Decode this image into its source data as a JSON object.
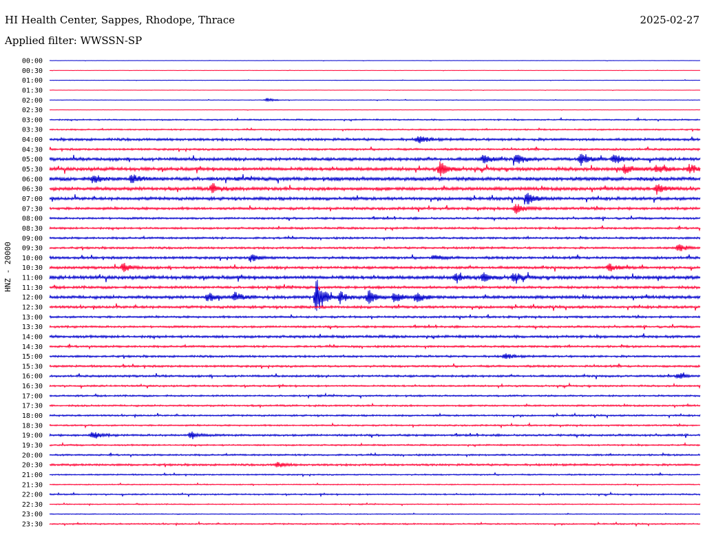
{
  "header": {
    "station": "HI Health Center, Sappes, Rhodope, Thrace",
    "filter": "Applied filter: WWSSN-SP",
    "date": "2025-02-27"
  },
  "chart_data": {
    "type": "line",
    "title": "HI Health Center, Sappes, Rhodope, Thrace",
    "subtitle": "Applied filter: WWSSN-SP",
    "ylabel": "HNZ - 20000",
    "xlabel": "",
    "row_labels": [
      "00:00",
      "00:30",
      "01:00",
      "01:30",
      "02:00",
      "02:30",
      "03:00",
      "03:30",
      "04:00",
      "04:30",
      "05:00",
      "05:30",
      "06:00",
      "06:30",
      "07:00",
      "07:30",
      "08:00",
      "08:30",
      "09:00",
      "09:30",
      "10:00",
      "10:30",
      "11:00",
      "11:30",
      "12:00",
      "12:30",
      "13:00",
      "13:30",
      "14:00",
      "14:30",
      "15:00",
      "15:30",
      "16:00",
      "16:30",
      "17:00",
      "17:30",
      "18:00",
      "18:30",
      "19:00",
      "19:30",
      "20:00",
      "20:30",
      "21:00",
      "21:30",
      "22:00",
      "22:30",
      "23:00",
      "23:30"
    ],
    "row_minutes": 30,
    "colors": {
      "even": "#0000cc",
      "odd": "#ff0033"
    },
    "noise_levels": [
      0.2,
      0.2,
      0.25,
      0.2,
      0.3,
      0.2,
      0.8,
      0.8,
      1.5,
      1.2,
      1.8,
      2.0,
      2.2,
      2.0,
      1.8,
      1.5,
      1.2,
      1.2,
      1.2,
      1.2,
      1.5,
      1.5,
      2.0,
      1.5,
      1.8,
      1.5,
      1.2,
      1.2,
      1.5,
      1.2,
      1.2,
      1.2,
      1.2,
      1.0,
      1.0,
      1.0,
      1.0,
      0.9,
      1.2,
      0.9,
      1.0,
      1.2,
      0.8,
      0.6,
      0.8,
      0.6,
      0.5,
      0.8
    ],
    "events": [
      {
        "row": 4,
        "minute": 10,
        "amp": 3
      },
      {
        "row": 8,
        "minute": 17,
        "amp": 6
      },
      {
        "row": 10,
        "minute": 20,
        "amp": 7
      },
      {
        "row": 10,
        "minute": 21.5,
        "amp": 8
      },
      {
        "row": 10,
        "minute": 24.5,
        "amp": 8
      },
      {
        "row": 10,
        "minute": 26,
        "amp": 8
      },
      {
        "row": 11,
        "minute": 18,
        "amp": 10
      },
      {
        "row": 11,
        "minute": 26.5,
        "amp": 7
      },
      {
        "row": 11,
        "minute": 28,
        "amp": 6
      },
      {
        "row": 11,
        "minute": 29.5,
        "amp": 6
      },
      {
        "row": 12,
        "minute": 2,
        "amp": 6
      },
      {
        "row": 12,
        "minute": 3.8,
        "amp": 6
      },
      {
        "row": 13,
        "minute": 7.5,
        "amp": 7
      },
      {
        "row": 13,
        "minute": 28,
        "amp": 7
      },
      {
        "row": 14,
        "minute": 22,
        "amp": 9
      },
      {
        "row": 15,
        "minute": 21.5,
        "amp": 8
      },
      {
        "row": 19,
        "minute": 29,
        "amp": 6
      },
      {
        "row": 20,
        "minute": 9.3,
        "amp": 6
      },
      {
        "row": 20,
        "minute": 17.7,
        "amp": 4
      },
      {
        "row": 21,
        "minute": 3.4,
        "amp": 6
      },
      {
        "row": 21,
        "minute": 25.8,
        "amp": 6
      },
      {
        "row": 22,
        "minute": 18.7,
        "amp": 6
      },
      {
        "row": 22,
        "minute": 20,
        "amp": 6
      },
      {
        "row": 22,
        "minute": 21.4,
        "amp": 8
      },
      {
        "row": 24,
        "minute": 7.3,
        "amp": 6
      },
      {
        "row": 24,
        "minute": 8.5,
        "amp": 7
      },
      {
        "row": 24,
        "minute": 12.3,
        "amp": 28
      },
      {
        "row": 24,
        "minute": 13.4,
        "amp": 8
      },
      {
        "row": 24,
        "minute": 14.7,
        "amp": 10
      },
      {
        "row": 24,
        "minute": 15.9,
        "amp": 8
      },
      {
        "row": 24,
        "minute": 16.9,
        "amp": 7
      },
      {
        "row": 30,
        "minute": 21,
        "amp": 4
      },
      {
        "row": 32,
        "minute": 29,
        "amp": 4
      },
      {
        "row": 38,
        "minute": 2,
        "amp": 6
      },
      {
        "row": 38,
        "minute": 6.5,
        "amp": 6
      },
      {
        "row": 41,
        "minute": 10.5,
        "amp": 4
      }
    ]
  }
}
